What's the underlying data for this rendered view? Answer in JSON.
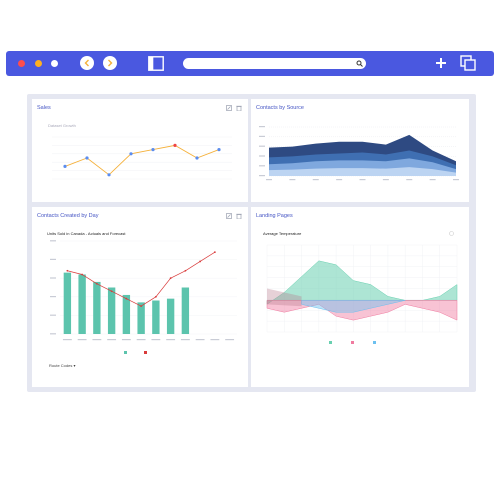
{
  "browser": {
    "url_value": "",
    "traffic_lights": [
      "#ff4d4d",
      "#ffb020",
      "#ffffff"
    ]
  },
  "cards": {
    "sales": {
      "title": "Sales",
      "chart_title": "Dataset Growth"
    },
    "contacts_source": {
      "title": "Contacts by Source"
    },
    "contacts_day": {
      "title": "Contacts Created by Day",
      "chart_title": "Units Sold in Canada - Actuals and Forecast",
      "dropdown_label": "Route Codes"
    },
    "landing": {
      "title": "Landing Pages",
      "chart_title": "Average Temperature"
    }
  },
  "chart_data": [
    {
      "type": "line",
      "points": [
        3,
        5,
        1,
        6,
        7,
        8,
        5,
        7
      ],
      "highlight_index": 5,
      "ylim": [
        0,
        10
      ],
      "colors": {
        "line": "#f5b13b",
        "point": "#5b8def",
        "highlight": "#ef4444"
      }
    },
    {
      "type": "area",
      "series": [
        {
          "values": [
            58,
            60,
            66,
            70,
            70,
            64,
            84,
            52,
            30
          ],
          "color": "#2e4a82"
        },
        {
          "values": [
            38,
            40,
            44,
            46,
            48,
            44,
            52,
            40,
            22
          ],
          "color": "#3f6fb2"
        },
        {
          "values": [
            24,
            26,
            30,
            32,
            32,
            30,
            36,
            28,
            14
          ],
          "color": "#7fa8de"
        },
        {
          "values": [
            12,
            13,
            15,
            16,
            16,
            15,
            18,
            14,
            7
          ],
          "color": "#bcd4f2"
        }
      ],
      "ylim": [
        0,
        100
      ]
    },
    {
      "type": "bar",
      "series": [
        {
          "values": [
            1650,
            1600,
            1400,
            1250,
            1050,
            850,
            900,
            950,
            1250
          ],
          "color": "#5cc4ad"
        },
        {
          "values": [
            1700,
            1600,
            1350,
            1150,
            950,
            750,
            1000,
            1500,
            1700,
            1950,
            2200
          ],
          "color": "#d93b3b"
        }
      ],
      "ylim": [
        0,
        2500
      ]
    },
    {
      "type": "area",
      "series": [
        {
          "values": [
            0,
            0,
            0,
            0,
            0,
            0,
            0,
            0,
            0,
            0,
            0,
            0
          ],
          "color": "#69d0b0"
        },
        {
          "values": [
            0,
            0,
            0,
            0,
            0,
            0,
            0,
            0,
            0,
            0,
            0,
            0
          ],
          "color": "#f07ba0"
        },
        {
          "values": [
            0,
            0,
            0,
            0,
            0,
            0,
            0,
            0,
            0,
            0,
            0,
            0
          ],
          "color": "#6cc0ef"
        }
      ],
      "upper": [
        -1,
        2,
        6,
        10,
        9,
        5,
        4,
        1,
        0,
        0,
        1,
        4
      ],
      "lower": [
        -2,
        -3,
        -2,
        -1,
        -4,
        -5,
        -4,
        -3,
        -1,
        -2,
        -3,
        -5
      ],
      "ylim": [
        -8,
        14
      ]
    }
  ]
}
